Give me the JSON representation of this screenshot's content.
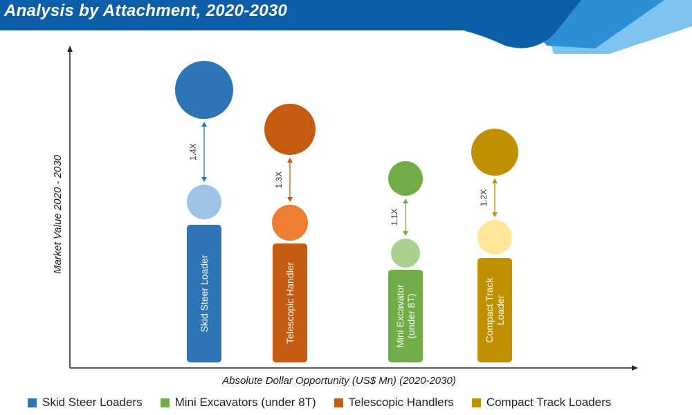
{
  "title": "Analysis by Attachment, 2020-2030",
  "colors": {
    "banner_dark": "#0d5ea8",
    "banner_mid": "#2c8fd6",
    "banner_light": "#7cc4ef",
    "axis": "#222222"
  },
  "chart_data": {
    "type": "bubble-bar",
    "xlabel": "Absolute Dollar Opportunity (US$ Mn) (2020-2030)",
    "ylabel": "Market Value 2020 - 2030",
    "grid": false,
    "legend_position": "bottom",
    "series": [
      {
        "bar_label": [
          "Skid Steer Loader"
        ],
        "ratio": "1.4X",
        "color": "#2e75b6",
        "light_color": "#9dc3e6"
      },
      {
        "bar_label": [
          "Telescopic Handler"
        ],
        "ratio": "1.3X",
        "color": "#c55a11",
        "light_color": "#ed7d31"
      },
      {
        "bar_label": [
          "Mini Excavator",
          "(under 8T)"
        ],
        "ratio": "1.1X",
        "color": "#70ad47",
        "light_color": "#a9d18e"
      },
      {
        "bar_label": [
          "Compact Track",
          "Loader"
        ],
        "ratio": "1.2X",
        "color": "#bf9000",
        "light_color": "#ffe699"
      }
    ],
    "legend": [
      {
        "label": "Skid Steer Loaders",
        "color": "#2e75b6"
      },
      {
        "label": "Mini Excavators (under 8T)",
        "color": "#70ad47"
      },
      {
        "label": "Telescopic Handlers",
        "color": "#c55a11"
      },
      {
        "label": "Compact Track Loaders",
        "color": "#bf9000"
      }
    ]
  }
}
